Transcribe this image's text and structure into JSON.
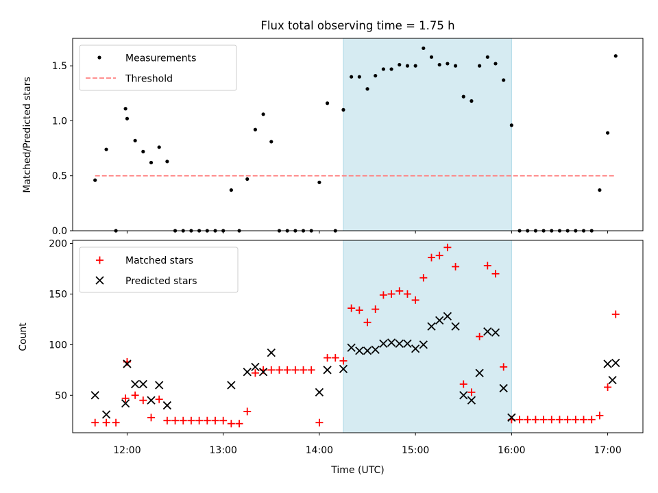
{
  "chart_data": [
    {
      "type": "scatter",
      "title": "Flux total observing time = 1.75 h",
      "xlabel": "",
      "ylabel": "Matched/Predicted stars",
      "xlim": [
        "11:26",
        "17:22"
      ],
      "ylim": [
        0,
        1.75
      ],
      "yticks": [
        0.0,
        0.5,
        1.0,
        1.5
      ],
      "ytick_labels": [
        "0.0",
        "0.5",
        "1.0",
        "1.5"
      ],
      "highlight_span": [
        "14:15",
        "16:00"
      ],
      "highlight_color": "#add8e6",
      "legend_position": "upper left",
      "series": [
        {
          "name": "Measurements",
          "marker": "dot",
          "color": "#000000",
          "x": [
            "11:40",
            "11:47",
            "11:53",
            "11:59",
            "12:00",
            "12:05",
            "12:10",
            "12:15",
            "12:20",
            "12:25",
            "12:30",
            "12:35",
            "12:40",
            "12:45",
            "12:50",
            "12:55",
            "13:00",
            "13:05",
            "13:10",
            "13:15",
            "13:20",
            "13:25",
            "13:30",
            "13:35",
            "13:40",
            "13:45",
            "13:50",
            "13:55",
            "14:00",
            "14:05",
            "14:10",
            "14:15",
            "14:20",
            "14:25",
            "14:30",
            "14:35",
            "14:40",
            "14:45",
            "14:50",
            "14:55",
            "15:00",
            "15:05",
            "15:10",
            "15:15",
            "15:20",
            "15:25",
            "15:30",
            "15:35",
            "15:40",
            "15:45",
            "15:50",
            "15:55",
            "16:00",
            "16:05",
            "16:10",
            "16:15",
            "16:20",
            "16:25",
            "16:30",
            "16:35",
            "16:40",
            "16:45",
            "16:50",
            "16:55",
            "17:00",
            "17:05"
          ],
          "y": [
            0.46,
            0.74,
            0.0,
            1.11,
            1.02,
            0.82,
            0.72,
            0.62,
            0.76,
            0.63,
            0.0,
            0.0,
            0.0,
            0.0,
            0.0,
            0.0,
            0.0,
            0.37,
            0.0,
            0.47,
            0.92,
            1.06,
            0.81,
            0.0,
            0.0,
            0.0,
            0.0,
            0.0,
            0.44,
            1.16,
            0.0,
            1.1,
            1.4,
            1.4,
            1.29,
            1.41,
            1.47,
            1.47,
            1.51,
            1.5,
            1.5,
            1.66,
            1.58,
            1.51,
            1.52,
            1.5,
            1.22,
            1.18,
            1.5,
            1.58,
            1.52,
            1.37,
            0.96,
            0.0,
            0.0,
            0.0,
            0.0,
            0.0,
            0.0,
            0.0,
            0.0,
            0.0,
            0.0,
            0.37,
            0.89,
            1.59
          ]
        },
        {
          "name": "Threshold",
          "marker": "dashed-line",
          "color": "#ff8080",
          "x": [
            "11:40",
            "17:05"
          ],
          "y": [
            0.5,
            0.5
          ]
        }
      ]
    },
    {
      "type": "scatter",
      "title": "",
      "xlabel": "Time (UTC)",
      "ylabel": "Count",
      "xlim": [
        "11:26",
        "17:22"
      ],
      "ylim": [
        13,
        203
      ],
      "yticks": [
        50,
        100,
        150,
        200
      ],
      "ytick_labels": [
        "50",
        "100",
        "150",
        "200"
      ],
      "xticks": [
        "12:00",
        "13:00",
        "14:00",
        "15:00",
        "16:00",
        "17:00"
      ],
      "highlight_span": [
        "14:15",
        "16:00"
      ],
      "highlight_color": "#add8e6",
      "legend_position": "upper left",
      "series": [
        {
          "name": "Matched stars",
          "marker": "plus",
          "color": "#ff0000",
          "x": [
            "11:40",
            "11:47",
            "11:53",
            "11:59",
            "12:00",
            "12:05",
            "12:10",
            "12:15",
            "12:20",
            "12:25",
            "12:30",
            "12:35",
            "12:40",
            "12:45",
            "12:50",
            "12:55",
            "13:00",
            "13:05",
            "13:10",
            "13:15",
            "13:20",
            "13:25",
            "13:30",
            "13:35",
            "13:40",
            "13:45",
            "13:50",
            "13:55",
            "14:00",
            "14:05",
            "14:10",
            "14:15",
            "14:20",
            "14:25",
            "14:30",
            "14:35",
            "14:40",
            "14:45",
            "14:50",
            "14:55",
            "15:00",
            "15:05",
            "15:10",
            "15:15",
            "15:20",
            "15:25",
            "15:30",
            "15:35",
            "15:40",
            "15:45",
            "15:50",
            "15:55",
            "16:00",
            "16:05",
            "16:10",
            "16:15",
            "16:20",
            "16:25",
            "16:30",
            "16:35",
            "16:40",
            "16:45",
            "16:50",
            "16:55",
            "17:00",
            "17:05"
          ],
          "y": [
            23,
            23,
            23,
            47,
            83,
            50,
            45,
            28,
            46,
            25,
            25,
            25,
            25,
            25,
            25,
            25,
            25,
            22,
            22,
            34,
            72,
            75,
            75,
            75,
            75,
            75,
            75,
            75,
            23,
            87,
            87,
            84,
            136,
            134,
            122,
            135,
            149,
            150,
            153,
            150,
            144,
            166,
            186,
            188,
            196,
            177,
            61,
            53,
            108,
            178,
            170,
            78,
            26,
            26,
            26,
            26,
            26,
            26,
            26,
            26,
            26,
            26,
            26,
            30,
            58,
            130
          ]
        },
        {
          "name": "Predicted stars",
          "marker": "x",
          "color": "#000000",
          "x": [
            "11:40",
            "11:47",
            "11:59",
            "12:00",
            "12:05",
            "12:10",
            "12:15",
            "12:20",
            "12:25",
            "13:05",
            "13:15",
            "13:20",
            "13:25",
            "13:30",
            "14:00",
            "14:05",
            "14:15",
            "14:20",
            "14:25",
            "14:30",
            "14:35",
            "14:40",
            "14:45",
            "14:50",
            "14:55",
            "15:00",
            "15:05",
            "15:10",
            "15:15",
            "15:20",
            "15:25",
            "15:30",
            "15:35",
            "15:40",
            "15:45",
            "15:50",
            "15:55",
            "16:00",
            "17:00",
            "17:03",
            "17:05"
          ],
          "y": [
            50,
            31,
            42,
            81,
            61,
            61,
            45,
            60,
            40,
            60,
            73,
            78,
            73,
            92,
            53,
            75,
            76,
            97,
            94,
            94,
            95,
            101,
            102,
            101,
            101,
            96,
            100,
            118,
            124,
            128,
            118,
            50,
            45,
            72,
            113,
            112,
            57,
            28,
            81,
            65,
            82
          ]
        }
      ]
    }
  ]
}
